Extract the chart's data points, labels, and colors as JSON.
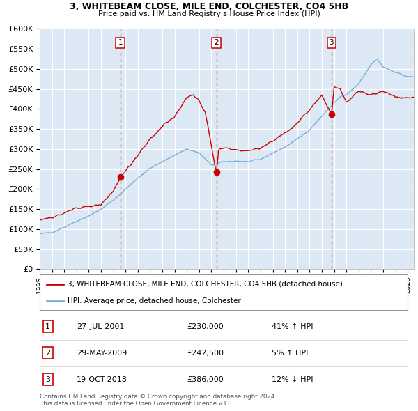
{
  "title": "3, WHITEBEAM CLOSE, MILE END, COLCHESTER, CO4 5HB",
  "subtitle": "Price paid vs. HM Land Registry's House Price Index (HPI)",
  "legend_line1": "3, WHITEBEAM CLOSE, MILE END, COLCHESTER, CO4 5HB (detached house)",
  "legend_line2": "HPI: Average price, detached house, Colchester",
  "footer1": "Contains HM Land Registry data © Crown copyright and database right 2024.",
  "footer2": "This data is licensed under the Open Government Licence v3.0.",
  "transactions": [
    {
      "num": 1,
      "date": "27-JUL-2001",
      "price": "£230,000",
      "pct": "41%",
      "dir": "↑"
    },
    {
      "num": 2,
      "date": "29-MAY-2009",
      "price": "£242,500",
      "pct": "5%",
      "dir": "↑"
    },
    {
      "num": 3,
      "date": "19-OCT-2018",
      "price": "£386,000",
      "pct": "12%",
      "dir": "↓"
    }
  ],
  "transaction_years": [
    2001.57,
    2009.41,
    2018.79
  ],
  "transaction_prices": [
    230000,
    242500,
    386000
  ],
  "hpi_color": "#7aaed4",
  "price_color": "#cc0000",
  "bg_color": "#dce9f5",
  "grid_color": "#ffffff",
  "vline_color": "#cc0000",
  "ylim": [
    0,
    600000
  ],
  "yticks": [
    0,
    50000,
    100000,
    150000,
    200000,
    250000,
    300000,
    350000,
    400000,
    450000,
    500000,
    550000,
    600000
  ],
  "ytick_labels": [
    "£0",
    "£50K",
    "£100K",
    "£150K",
    "£200K",
    "£250K",
    "£300K",
    "£350K",
    "£400K",
    "£450K",
    "£500K",
    "£550K",
    "£600K"
  ],
  "xlim_start": 1995.0,
  "xlim_end": 2025.5
}
